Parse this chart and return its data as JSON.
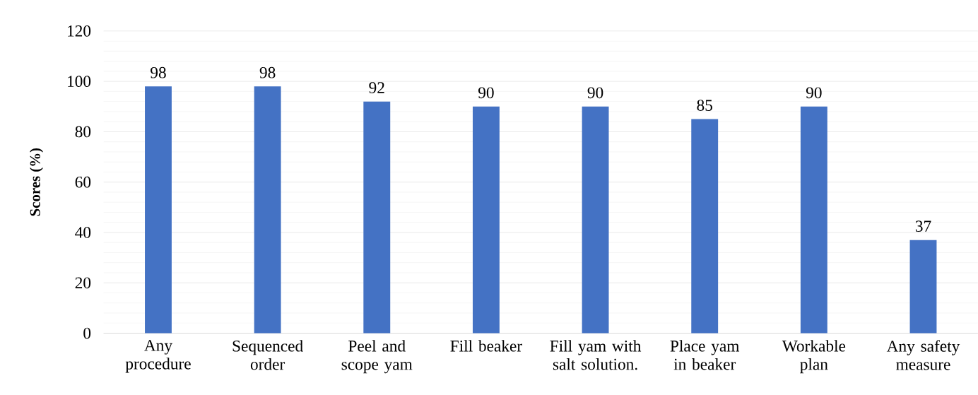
{
  "chart_data": {
    "type": "bar",
    "ylabel": "**Scores (%)**",
    "categories": [
      "Any procedure",
      "Sequenced order",
      "Peel and scope yam",
      "Fill beaker",
      "Fill yam with salt solution.",
      "Place yam in beaker",
      "Workable plan",
      "Any safety measure"
    ],
    "values": [
      98,
      98,
      92,
      90,
      90,
      85,
      90,
      37
    ],
    "color": "#4472c4",
    "ylim": [
      0,
      120
    ],
    "yticks": [
      0,
      20,
      40,
      60,
      80,
      100,
      120
    ],
    "grid": "y",
    "data_labels": true
  }
}
